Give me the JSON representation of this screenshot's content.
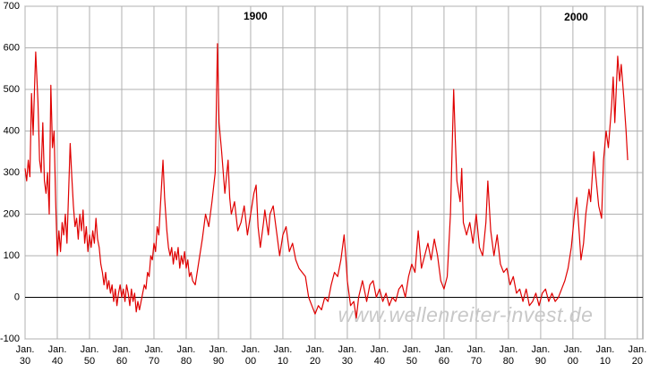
{
  "chart_data": {
    "type": "line",
    "annotations": [
      {
        "text": "1900",
        "x": 1901.5,
        "y": 675
      },
      {
        "text": "2000",
        "x": 2001,
        "y": 672
      }
    ],
    "watermark": "www.wellenreiter-invest.de",
    "color": "#e00000",
    "grid": true,
    "xlim": [
      1830,
      2021.7
    ],
    "xticks": [
      {
        "value": 1830,
        "label": "Jan.\n30"
      },
      {
        "value": 1840,
        "label": "Jan.\n40"
      },
      {
        "value": 1850,
        "label": "Jan.\n50"
      },
      {
        "value": 1860,
        "label": "Jan.\n60"
      },
      {
        "value": 1870,
        "label": "Jan.\n70"
      },
      {
        "value": 1880,
        "label": "Jan.\n80"
      },
      {
        "value": 1890,
        "label": "Jan.\n90"
      },
      {
        "value": 1900,
        "label": "Jan.\n00"
      },
      {
        "value": 1910,
        "label": "Jan.\n10"
      },
      {
        "value": 1920,
        "label": "Jan.\n20"
      },
      {
        "value": 1930,
        "label": "Jan.\n30"
      },
      {
        "value": 1940,
        "label": "Jan.\n40"
      },
      {
        "value": 1950,
        "label": "Jan.\n50"
      },
      {
        "value": 1960,
        "label": "Jan.\n60"
      },
      {
        "value": 1970,
        "label": "Jan.\n70"
      },
      {
        "value": 1980,
        "label": "Jan.\n80"
      },
      {
        "value": 1990,
        "label": "Jan.\n90"
      },
      {
        "value": 2000,
        "label": "Jan.\n00"
      },
      {
        "value": 2010,
        "label": "Jan.\n10"
      },
      {
        "value": 2020,
        "label": "Jan.\n20"
      }
    ],
    "ylim": [
      -100,
      700
    ],
    "yticks": [
      -100,
      0,
      100,
      200,
      300,
      400,
      500,
      600,
      700
    ],
    "x": [
      1830,
      1830.5,
      1831,
      1831.5,
      1832,
      1832.5,
      1833,
      1833.3,
      1834,
      1834.5,
      1835,
      1835.5,
      1836,
      1836.5,
      1837,
      1837.5,
      1838,
      1838.5,
      1839,
      1839.5,
      1840,
      1840.5,
      1841,
      1841.5,
      1842,
      1842.5,
      1843,
      1843.5,
      1844,
      1844.5,
      1845,
      1845.5,
      1846,
      1846.5,
      1847,
      1847.5,
      1848,
      1848.5,
      1849,
      1849.5,
      1850,
      1850.5,
      1851,
      1851.5,
      1852,
      1852.5,
      1853,
      1853.5,
      1854,
      1854.5,
      1855,
      1855.5,
      1856,
      1856.5,
      1857,
      1857.5,
      1858,
      1858.5,
      1859,
      1859.5,
      1860,
      1860.5,
      1861,
      1861.5,
      1862,
      1862.5,
      1863,
      1863.5,
      1864,
      1864.5,
      1865,
      1865.5,
      1866,
      1866.5,
      1867,
      1867.5,
      1868,
      1868.5,
      1869,
      1869.5,
      1870,
      1870.5,
      1871,
      1871.5,
      1872,
      1872.8,
      1873.3,
      1874,
      1874.5,
      1875,
      1875.5,
      1876,
      1876.5,
      1877,
      1877.5,
      1878,
      1878.5,
      1879,
      1879.5,
      1880,
      1880.5,
      1881,
      1881.5,
      1882,
      1882.8,
      1884,
      1885,
      1886,
      1887,
      1888,
      1889,
      1889.7,
      1890.2,
      1891,
      1892,
      1893,
      1893.5,
      1894,
      1895,
      1896,
      1897,
      1898,
      1899,
      1900,
      1901,
      1901.7,
      1902.3,
      1903,
      1904,
      1904.4,
      1905.5,
      1906,
      1907,
      1908,
      1909,
      1910,
      1911,
      1912,
      1913,
      1914,
      1915,
      1916,
      1917,
      1918,
      1919,
      1920,
      1921,
      1922,
      1923,
      1924,
      1925,
      1926,
      1927,
      1928,
      1929,
      1929.5,
      1930,
      1931,
      1932,
      1932.8,
      1933.5,
      1934.7,
      1935.5,
      1936,
      1937,
      1938,
      1939,
      1940,
      1941,
      1942,
      1943,
      1944,
      1945,
      1946,
      1947,
      1948,
      1949,
      1950,
      1951,
      1952,
      1953,
      1954,
      1955,
      1956,
      1957,
      1958,
      1959,
      1960,
      1961,
      1962,
      1963,
      1963.5,
      1964,
      1965,
      1965.5,
      1966,
      1967,
      1968,
      1969,
      1970,
      1971,
      1972,
      1973,
      1973.6,
      1974.5,
      1975.5,
      1976.5,
      1977.5,
      1978.5,
      1979.5,
      1980.5,
      1981.5,
      1982.5,
      1983.5,
      1984.5,
      1985.5,
      1986.5,
      1987.5,
      1988.5,
      1989.5,
      1990.5,
      1991.5,
      1992.5,
      1993.5,
      1994.5,
      1995.5,
      1996.5,
      1997.5,
      1998.5,
      1999.5,
      2000.5,
      2001.2,
      2002,
      2002.5,
      2003.3,
      2004,
      2005,
      2005.5,
      2006.5,
      2007,
      2008,
      2008.9,
      2009.5,
      2010.3,
      2011,
      2012,
      2012.5,
      2013,
      2013.9,
      2014.5,
      2015,
      2015.8,
      2016.5,
      2017
    ],
    "values": [
      310,
      280,
      330,
      290,
      490,
      390,
      520,
      590,
      470,
      330,
      300,
      420,
      280,
      250,
      300,
      200,
      510,
      360,
      400,
      230,
      100,
      160,
      110,
      180,
      150,
      200,
      130,
      250,
      370,
      290,
      220,
      170,
      190,
      140,
      200,
      160,
      210,
      130,
      170,
      110,
      150,
      120,
      160,
      130,
      190,
      140,
      120,
      80,
      60,
      30,
      60,
      20,
      40,
      10,
      30,
      -10,
      20,
      -20,
      10,
      30,
      0,
      20,
      -10,
      30,
      10,
      -20,
      20,
      -10,
      10,
      -35,
      -10,
      -30,
      -10,
      10,
      30,
      20,
      60,
      50,
      100,
      90,
      130,
      110,
      170,
      150,
      220,
      330,
      240,
      160,
      120,
      100,
      120,
      80,
      110,
      90,
      120,
      70,
      100,
      80,
      110,
      70,
      90,
      50,
      60,
      40,
      30,
      90,
      140,
      200,
      170,
      230,
      300,
      610,
      420,
      350,
      250,
      330,
      240,
      200,
      230,
      160,
      180,
      220,
      150,
      200,
      250,
      270,
      170,
      120,
      180,
      210,
      150,
      200,
      220,
      160,
      100,
      150,
      170,
      110,
      130,
      90,
      70,
      60,
      50,
      0,
      -20,
      -40,
      -20,
      -30,
      0,
      -10,
      30,
      60,
      50,
      90,
      150,
      100,
      40,
      -20,
      -10,
      -50,
      0,
      40,
      10,
      -10,
      30,
      40,
      0,
      20,
      -10,
      10,
      -20,
      0,
      -10,
      20,
      30,
      0,
      50,
      80,
      60,
      160,
      70,
      100,
      130,
      90,
      140,
      100,
      40,
      20,
      50,
      200,
      500,
      380,
      280,
      230,
      310,
      180,
      150,
      180,
      130,
      200,
      120,
      100,
      180,
      280,
      160,
      100,
      150,
      80,
      60,
      70,
      30,
      50,
      10,
      20,
      -10,
      20,
      -20,
      -10,
      10,
      -20,
      10,
      20,
      -10,
      10,
      -10,
      0,
      20,
      40,
      70,
      120,
      200,
      240,
      150,
      90,
      130,
      200,
      260,
      230,
      350,
      300,
      220,
      190,
      330,
      400,
      360,
      460,
      530,
      420,
      580,
      520,
      560,
      480,
      400,
      330
    ]
  }
}
